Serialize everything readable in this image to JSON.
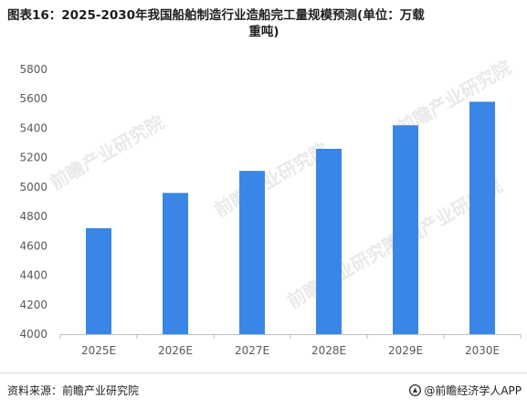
{
  "title": {
    "line1": "图表16：2025-2030年我国船舶制造行业造船完工量规模预测(单位：万载",
    "line2": "重吨)"
  },
  "footer": {
    "source": "资料来源：前瞻产业研究院",
    "brand": "@前瞻经济学人APP",
    "brand_icon": "brand-logo-icon"
  },
  "watermark": {
    "text": "前瞻产业研究院"
  },
  "chart_data": {
    "type": "bar",
    "title": "图表16：2025-2030年我国船舶制造行业造船完工量规模预测(单位：万载重吨)",
    "categories": [
      "2025E",
      "2026E",
      "2027E",
      "2028E",
      "2029E",
      "2030E"
    ],
    "values": [
      4720,
      4960,
      5110,
      5260,
      5420,
      5580
    ],
    "ylim": [
      4000,
      5800
    ],
    "yticks": [
      4000,
      4200,
      4400,
      4600,
      4800,
      5000,
      5200,
      5400,
      5600,
      5800
    ],
    "xlabel": "",
    "ylabel": "",
    "grid": false,
    "legend": false,
    "colors": {
      "bar": "#3a86e6",
      "axis": "#bfbfbf",
      "tick_text": "#595959"
    }
  }
}
